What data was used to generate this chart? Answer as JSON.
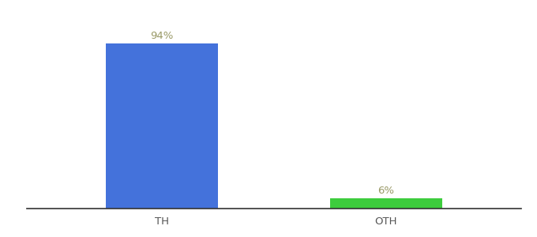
{
  "categories": [
    "TH",
    "OTH"
  ],
  "values": [
    94,
    6
  ],
  "bar_colors": [
    "#4472db",
    "#3dcc3d"
  ],
  "label_texts": [
    "94%",
    "6%"
  ],
  "background_color": "#ffffff",
  "ylim": [
    0,
    108
  ],
  "bar_width": 0.5,
  "label_fontsize": 9.5,
  "tick_fontsize": 9.5,
  "tick_color": "#555555",
  "label_color": "#999966",
  "spine_color": "#333333"
}
